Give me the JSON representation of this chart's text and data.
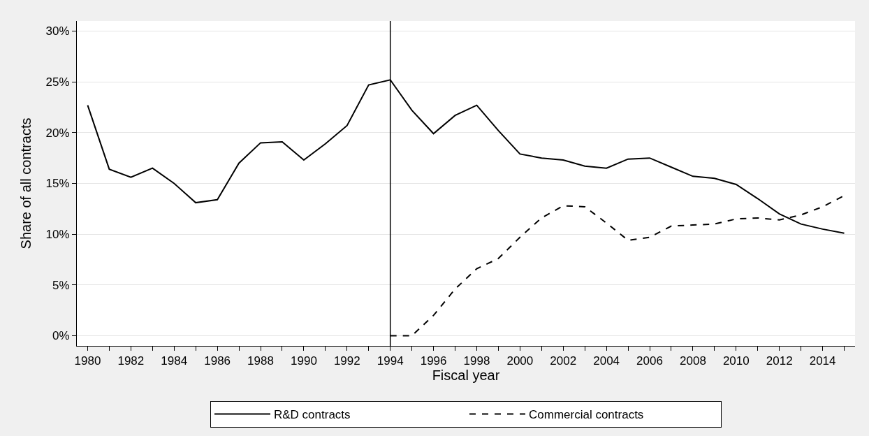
{
  "chart_data": {
    "type": "line",
    "xlabel": "Fiscal year",
    "ylabel": "Share of all contracts",
    "x": [
      1980,
      1981,
      1982,
      1983,
      1984,
      1985,
      1986,
      1987,
      1988,
      1989,
      1990,
      1991,
      1992,
      1993,
      1994,
      1995,
      1996,
      1997,
      1998,
      1999,
      2000,
      2001,
      2002,
      2003,
      2004,
      2005,
      2006,
      2007,
      2008,
      2009,
      2010,
      2011,
      2012,
      2013,
      2014,
      2015
    ],
    "series": [
      {
        "name": "R&D contracts",
        "color": "#000000",
        "line_style": "solid",
        "values": [
          22.7,
          16.4,
          15.6,
          16.5,
          15.0,
          13.1,
          13.4,
          17.0,
          19.0,
          19.1,
          17.3,
          18.9,
          20.7,
          24.7,
          25.2,
          22.2,
          19.9,
          21.7,
          22.7,
          20.2,
          17.9,
          17.5,
          17.3,
          16.7,
          16.5,
          17.4,
          17.5,
          16.6,
          15.7,
          15.5,
          14.9,
          13.5,
          12.0,
          11.0,
          10.5,
          10.1
        ]
      },
      {
        "name": "Commercial contracts",
        "color": "#000000",
        "line_style": "dashed",
        "values": [
          null,
          null,
          null,
          null,
          null,
          null,
          null,
          null,
          null,
          null,
          null,
          null,
          null,
          null,
          0.0,
          0.0,
          2.0,
          4.6,
          6.6,
          7.6,
          9.7,
          11.6,
          12.8,
          12.7,
          11.1,
          9.4,
          9.7,
          10.8,
          10.9,
          11.0,
          11.5,
          11.6,
          11.4,
          11.9,
          12.7,
          13.8
        ]
      }
    ],
    "xlim": [
      1979.5,
      2015.5
    ],
    "xticks": [
      1980,
      {
        "value": 1981,
        "label": null
      },
      1982,
      {
        "value": 1983,
        "label": null
      },
      1984,
      {
        "value": 1985,
        "label": null
      },
      1986,
      {
        "value": 1987,
        "label": null
      },
      1988,
      {
        "value": 1989,
        "label": null
      },
      1990,
      {
        "value": 1991,
        "label": null
      },
      1992,
      {
        "value": 1993,
        "label": null
      },
      1994,
      {
        "value": 1995,
        "label": null
      },
      1996,
      {
        "value": 1997,
        "label": null
      },
      1998,
      {
        "value": 1999,
        "label": null
      },
      2000,
      {
        "value": 2001,
        "label": null
      },
      2002,
      {
        "value": 2003,
        "label": null
      },
      2004,
      {
        "value": 2005,
        "label": null
      },
      2006,
      {
        "value": 2007,
        "label": null
      },
      2008,
      {
        "value": 2009,
        "label": null
      },
      2010,
      {
        "value": 2011,
        "label": null
      },
      2012,
      {
        "value": 2013,
        "label": null
      },
      2014,
      {
        "value": 2015,
        "label": null
      }
    ],
    "ylim": [
      -1,
      31
    ],
    "yticks": [
      {
        "value": 0,
        "label": "0%"
      },
      {
        "value": 5,
        "label": "5%"
      },
      {
        "value": 10,
        "label": "10%"
      },
      {
        "value": 15,
        "label": "15%"
      },
      {
        "value": 20,
        "label": "20%"
      },
      {
        "value": 25,
        "label": "25%"
      },
      {
        "value": 30,
        "label": "30%"
      }
    ],
    "ref_lines": [
      {
        "axis": "x",
        "value": 1994,
        "color": "#000000",
        "line_style": "solid"
      }
    ],
    "grid": "y",
    "legend": "bottom",
    "marker": "none"
  }
}
